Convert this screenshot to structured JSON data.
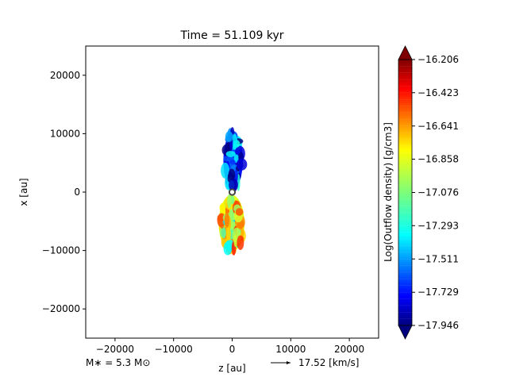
{
  "chart_data": {
    "type": "heatmap",
    "title": "Time = 51.109 kyr",
    "xlabel": "z [au]",
    "ylabel": "x [au]",
    "xlim": [
      -25000,
      25000
    ],
    "ylim": [
      -25000,
      25000
    ],
    "xticks": [
      -20000,
      -10000,
      0,
      10000,
      20000
    ],
    "yticks": [
      -20000,
      -10000,
      0,
      10000,
      20000
    ],
    "xtick_labels": [
      "−20000",
      "−10000",
      "0",
      "10000",
      "20000"
    ],
    "ytick_labels": [
      "−20000",
      "−10000",
      "0",
      "10000",
      "20000"
    ],
    "colorbar": {
      "label": "Log(Outflow density) [g/cm3]",
      "colormap": "jet",
      "vmin": -17.946,
      "vmax": -16.206,
      "ticks": [
        -16.206,
        -16.423,
        -16.641,
        -16.858,
        -17.076,
        -17.293,
        -17.511,
        -17.729,
        -17.946
      ],
      "tick_labels": [
        "−16.206",
        "−16.423",
        "−16.641",
        "−16.858",
        "−17.076",
        "−17.293",
        "−17.511",
        "−17.729",
        "−17.946"
      ],
      "extend": "both"
    },
    "annotations": {
      "stellar_mass": "M∗ = 5.3 M⊙",
      "velocity_key": "17.52 [km/s]"
    },
    "sink_particle": {
      "z": 0,
      "x": 0
    },
    "outflow_lobes": [
      {
        "name": "upper",
        "z_range": [
          -1500,
          1800
        ],
        "x_range": [
          500,
          10200
        ],
        "log_density_typical": -17.7
      },
      {
        "name": "lower",
        "z_range": [
          -2300,
          2100
        ],
        "x_range": [
          -10200,
          -500
        ],
        "log_density_typical": -16.9
      }
    ]
  }
}
